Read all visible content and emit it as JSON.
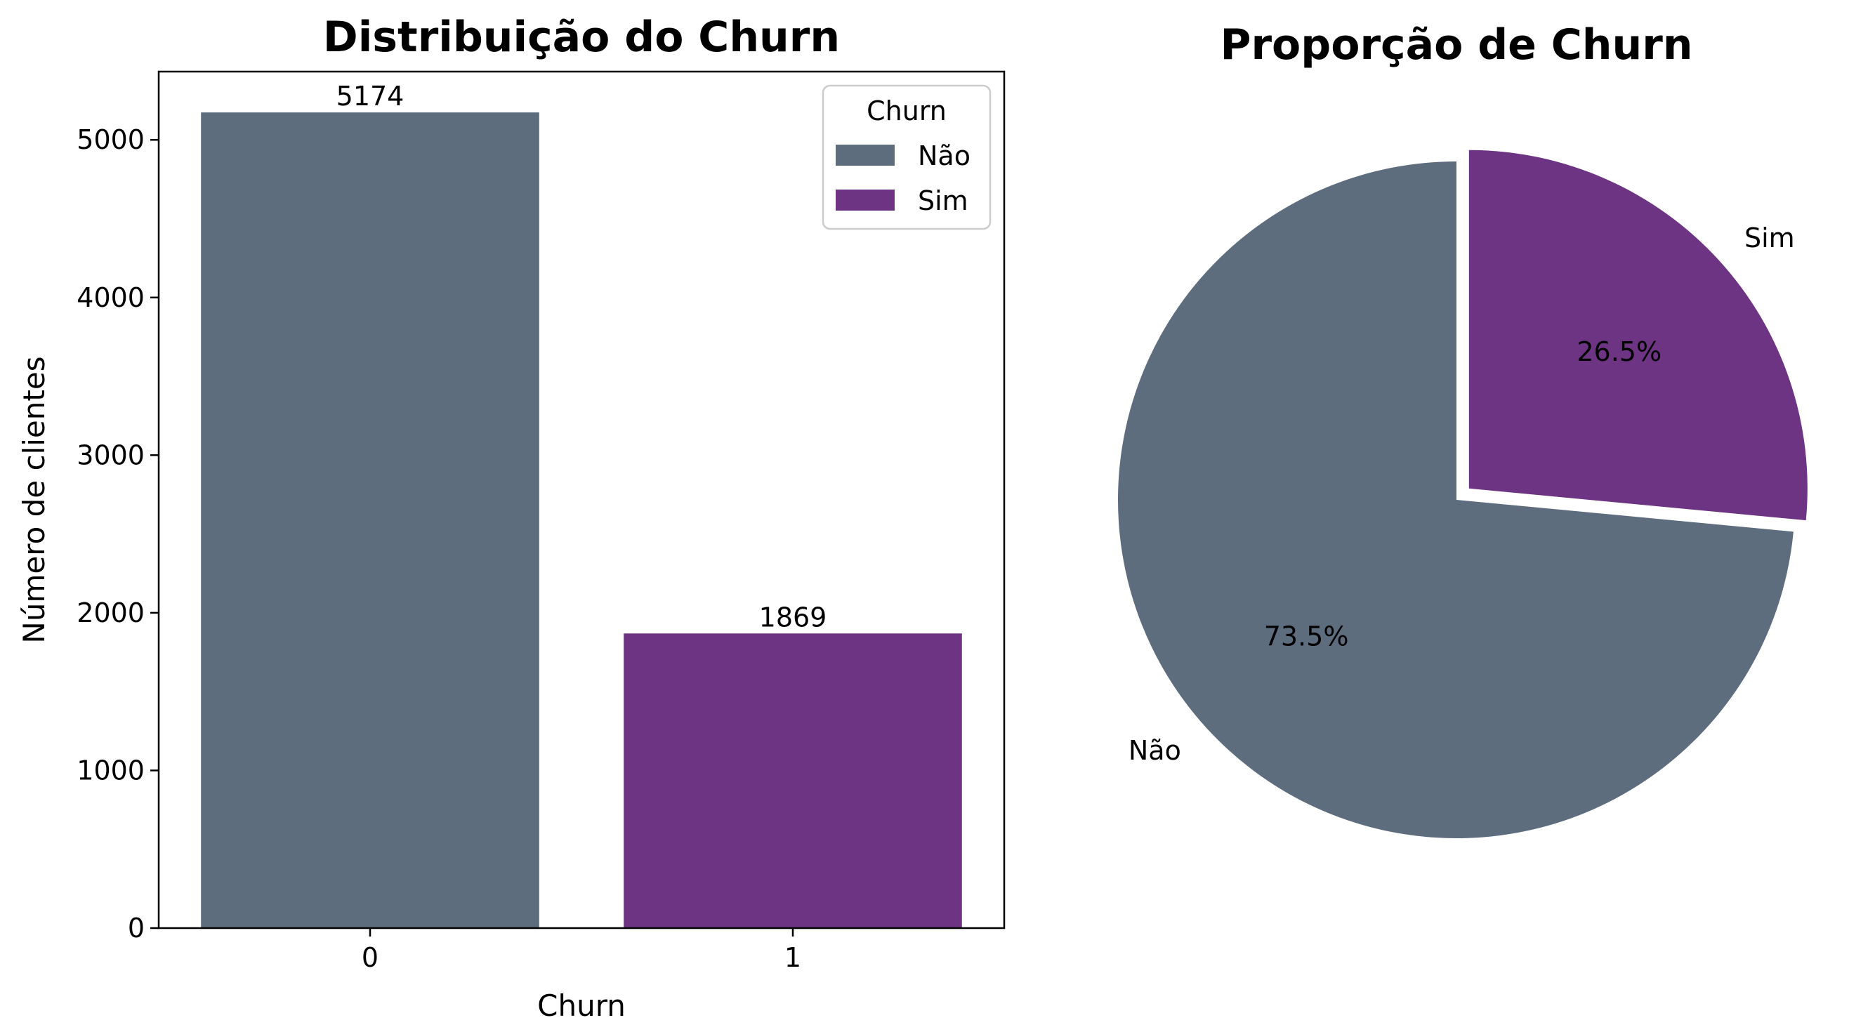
{
  "chart_data": [
    {
      "type": "bar",
      "title": "Distribuição do Churn",
      "xlabel": "Churn",
      "ylabel": "Número de clientes",
      "categories": [
        "0",
        "1"
      ],
      "values": [
        5174,
        1869
      ],
      "data_labels": [
        "5174",
        "1869"
      ],
      "series_names": [
        "Não",
        "Sim"
      ],
      "colors": [
        "#5d6d7e",
        "#6c3483"
      ],
      "yticks": [
        0,
        1000,
        2000,
        3000,
        4000,
        5000
      ],
      "ytick_labels": [
        "0",
        "1000",
        "2000",
        "3000",
        "4000",
        "5000"
      ],
      "ylim": [
        0,
        5433
      ],
      "grid": false,
      "legend": {
        "title": "Churn",
        "placement": "top-right",
        "entries": [
          "Não",
          "Sim"
        ]
      }
    },
    {
      "type": "pie",
      "title": "Proporção de Churn",
      "labels": [
        "Não",
        "Sim"
      ],
      "values": [
        73.5,
        26.5
      ],
      "percent_labels": [
        "73.5%",
        "26.5%"
      ],
      "colors": [
        "#5d6d7e",
        "#6c3483"
      ],
      "exploded": [
        "Sim"
      ],
      "start_angle": 90
    }
  ]
}
